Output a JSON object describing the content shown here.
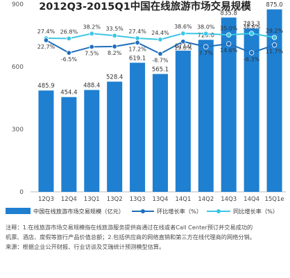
{
  "chart_data": {
    "type": "bar",
    "title": "2012Q3-2015Q1中国在线旅游市场交易规模",
    "categories": [
      "12Q3",
      "12Q4",
      "13Q1",
      "13Q2",
      "13Q3",
      "13Q4",
      "14Q1",
      "14Q2",
      "14Q3",
      "14Q4",
      "15Q1e"
    ],
    "yticks": [
      0,
      300,
      600,
      900
    ],
    "ylim": [
      0,
      1000
    ],
    "series": [
      {
        "name": "中国在线旅游市场交易规模（亿元）",
        "kind": "bar",
        "color": "#1f7fd0",
        "values": [
          485.9,
          454.4,
          488.4,
          528.4,
          619.1,
          565.1,
          677.0,
          729.0,
          835.8,
          783.3,
          875.0
        ],
        "labels": [
          "485.9",
          "454.4",
          "488.4",
          "528.4",
          "619.1",
          "565.1",
          "677.0",
          "729.0",
          "835.8",
          "783.3",
          "875.0"
        ]
      },
      {
        "name": "环比增长率（%）",
        "kind": "line",
        "color": "#1f6fbd",
        "values": [
          22.7,
          -6.5,
          7.5,
          8.2,
          17.2,
          -8.7,
          19.8,
          7.7,
          14.6,
          -6.3,
          11.7
        ],
        "labels": [
          "22.7%",
          "-6.5%",
          "7.5%",
          "8.2%",
          "17.2%",
          "-8.7%",
          "19.8%",
          "7.7%",
          "14.6%",
          "-6.3%",
          "11.7%"
        ]
      },
      {
        "name": "同比增长率（%）",
        "kind": "line",
        "color": "#3cc6e6",
        "values": [
          27.4,
          26.8,
          38.2,
          33.5,
          27.4,
          24.4,
          38.6,
          38.0,
          35.0,
          38.6,
          29.2
        ],
        "labels": [
          "27.4%",
          "26.8%",
          "38.2%",
          "33.5%",
          "27.4%",
          "24.4%",
          "38.6%",
          "38.0%",
          "35.0%",
          "38.6%",
          "29.2%"
        ]
      }
    ],
    "grid": false,
    "legend_placement": "bottom"
  },
  "notes": {
    "line1": "注释：1.在线旅游市场交易规模指在线旅游服务提供商通过在线或者Call Center预订并交易成功的",
    "line2": "机票、酒店、度假等旅行产品价值总额；2.包括供应商的网络直销和第三方在线代理商的网络分销。",
    "line3": "来源：根据企业公开财报、行业访谈及艾瑞统计预测模型估算。"
  }
}
